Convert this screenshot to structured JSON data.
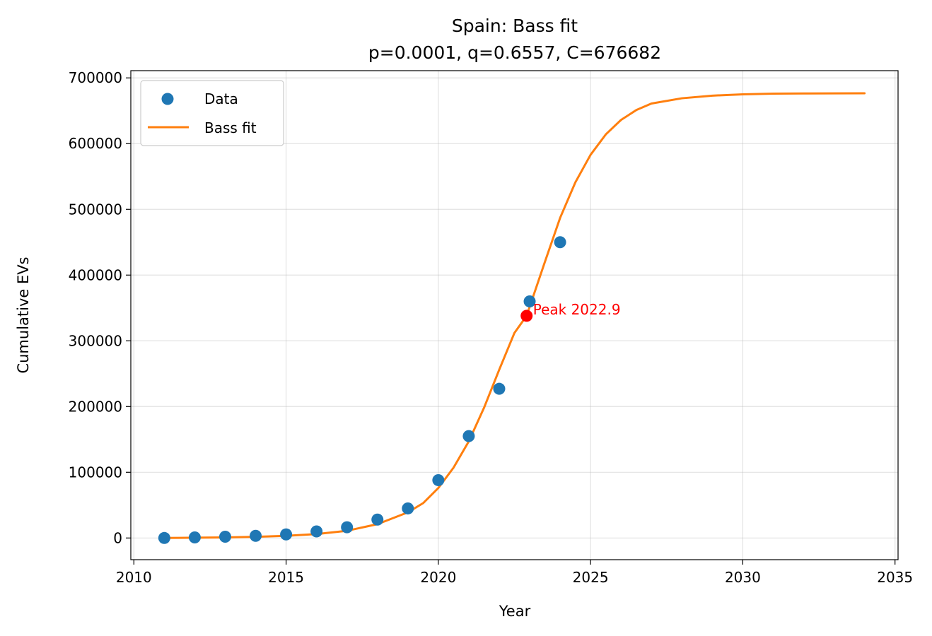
{
  "chart_data": {
    "type": "scatter",
    "title": "Spain: Bass fit",
    "subtitle": "p=0.0001, q=0.6557, C=676682",
    "xlabel": "Year",
    "ylabel": "Cumulative EVs",
    "xlim": [
      2009.9,
      2035.1
    ],
    "ylim": [
      -33000,
      711000
    ],
    "xticks": [
      2010,
      2015,
      2020,
      2025,
      2030,
      2035
    ],
    "yticks": [
      0,
      100000,
      200000,
      300000,
      400000,
      500000,
      600000,
      700000
    ],
    "xtick_labels": [
      "2010",
      "2015",
      "2020",
      "2025",
      "2030",
      "2035"
    ],
    "ytick_labels": [
      "0",
      "100000",
      "200000",
      "300000",
      "400000",
      "500000",
      "600000",
      "700000"
    ],
    "grid": true,
    "legend_position": "top-left",
    "series": [
      {
        "name": "Data",
        "type": "scatter",
        "color": "#1f77b4",
        "x": [
          2011,
          2012,
          2013,
          2014,
          2015,
          2016,
          2017,
          2018,
          2019,
          2020,
          2021,
          2022,
          2023,
          2024
        ],
        "y": [
          0,
          900,
          1900,
          3300,
          5400,
          10000,
          16300,
          28000,
          45000,
          88000,
          155000,
          227000,
          360000,
          450000
        ]
      },
      {
        "name": "Bass fit",
        "type": "line",
        "color": "#ff7f0e",
        "x": [
          2011,
          2012,
          2013,
          2014,
          2015,
          2016,
          2017,
          2018,
          2019,
          2019.5,
          2020,
          2020.5,
          2021,
          2021.5,
          2022,
          2022.5,
          2022.9,
          2023.5,
          2024,
          2024.5,
          2025,
          2025.5,
          2026,
          2026.5,
          2027,
          2028,
          2029,
          2030,
          2031,
          2032,
          2033,
          2034
        ],
        "y": [
          0,
          400,
          900,
          1800,
          3300,
          6000,
          11000,
          21000,
          39000,
          53000,
          76000,
          107000,
          147000,
          198000,
          256000,
          312000,
          338000,
          420000,
          487000,
          541000,
          583000,
          614000,
          636000,
          651000,
          661000,
          669000,
          673000,
          675000,
          676000,
          676300,
          676500,
          676600
        ]
      }
    ],
    "annotations": [
      {
        "text": "Peak 2022.9",
        "x": 2022.9,
        "y": 338000,
        "color": "#ff0000"
      }
    ]
  }
}
